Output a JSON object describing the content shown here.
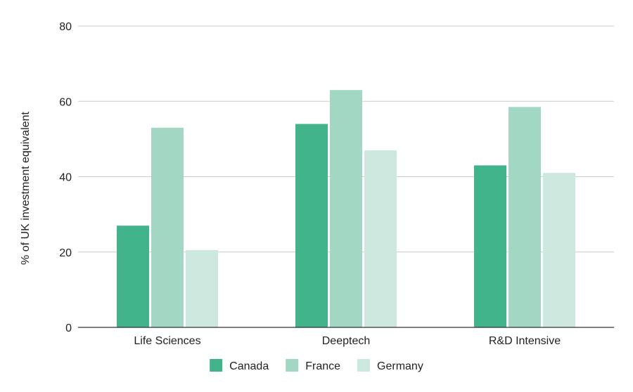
{
  "chart_data": {
    "type": "bar",
    "categories": [
      "Life Sciences",
      "Deeptech",
      "R&D Intensive"
    ],
    "series": [
      {
        "name": "Canada",
        "values": [
          27,
          54,
          43
        ],
        "color": "#41b48b"
      },
      {
        "name": "France",
        "values": [
          53,
          63,
          58.5
        ],
        "color": "#a2d7c4"
      },
      {
        "name": "Germany",
        "values": [
          20.5,
          47,
          41
        ],
        "color": "#cde8df"
      }
    ],
    "title": "",
    "xlabel": "",
    "ylabel": "% of UK investment equivalent",
    "ylim": [
      0,
      80
    ],
    "yticks": [
      0,
      20,
      40,
      60,
      80
    ],
    "grid": true,
    "legend_position": "bottom"
  }
}
